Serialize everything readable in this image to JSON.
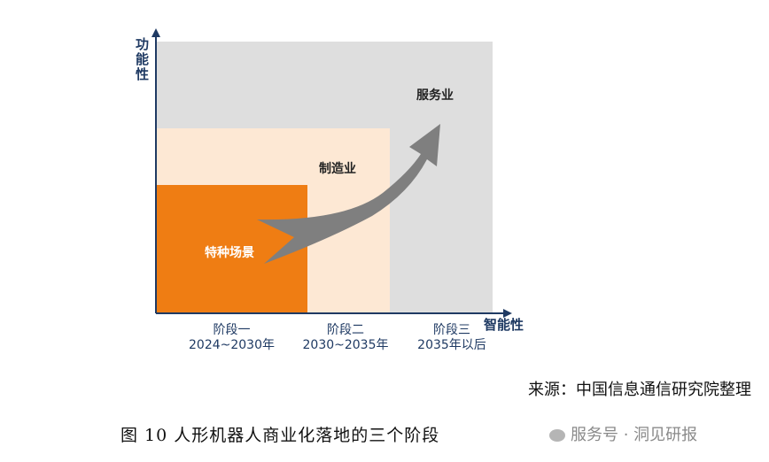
{
  "diagram": {
    "y_axis_label": "功能性",
    "x_axis_label": "智能性",
    "regions": [
      {
        "label": "特种场景",
        "color": "#ef7d13",
        "text_color": "#ffffff"
      },
      {
        "label": "制造业",
        "color": "#fde8d4",
        "text_color": "#222222"
      },
      {
        "label": "服务业",
        "color": "#dedede",
        "text_color": "#222222"
      }
    ],
    "stages": [
      {
        "name": "阶段一",
        "period": "2024~2030年"
      },
      {
        "name": "阶段二",
        "period": "2030~2035年"
      },
      {
        "name": "阶段三",
        "period": "2035年以后"
      }
    ],
    "arrow_color": "#7f7f7f",
    "axis_color": "#1f3a63"
  },
  "source": "来源：中国信息通信研究院整理",
  "caption": "图 10 人形机器人商业化落地的三个阶段",
  "watermark": "服务号 · 洞见研报"
}
